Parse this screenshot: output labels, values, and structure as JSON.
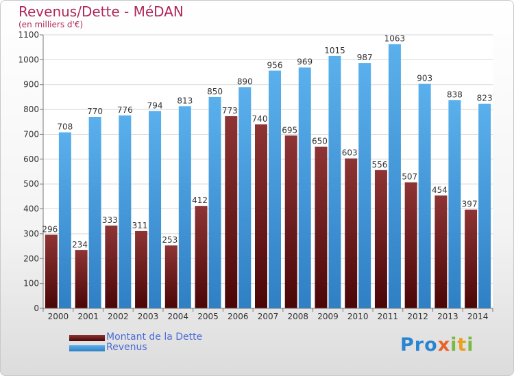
{
  "header": {
    "title": "Revenus/Dette - MéDAN",
    "subtitle": "(en milliers d'€)"
  },
  "legend": [
    {
      "label": "Montant de la Dette",
      "color": "#7a1c1c"
    },
    {
      "label": "Revenus",
      "color": "#4aa3e6"
    }
  ],
  "brand": {
    "text": "Proxiti",
    "letters": [
      {
        "ch": "P",
        "color": "#2a85d0"
      },
      {
        "ch": "r",
        "color": "#2a85d0"
      },
      {
        "ch": "o",
        "color": "#2a85d0"
      },
      {
        "ch": "x",
        "color": "#e8622a"
      },
      {
        "ch": "i",
        "color": "#7ab842"
      },
      {
        "ch": "t",
        "color": "#e8a020"
      },
      {
        "ch": "i",
        "color": "#7ab842"
      }
    ]
  },
  "chart_data": {
    "type": "bar",
    "categories": [
      "2000",
      "2001",
      "2002",
      "2003",
      "2004",
      "2005",
      "2006",
      "2007",
      "2008",
      "2009",
      "2010",
      "2011",
      "2012",
      "2013",
      "2014"
    ],
    "series": [
      {
        "name": "Montant de la Dette",
        "color": "#7a1c1c",
        "values": [
          296,
          234,
          333,
          311,
          253,
          412,
          773,
          740,
          695,
          650,
          603,
          556,
          507,
          454,
          397
        ]
      },
      {
        "name": "Revenus",
        "color": "#4aa3e6",
        "values": [
          708,
          770,
          776,
          794,
          813,
          850,
          890,
          956,
          969,
          1015,
          987,
          1063,
          903,
          838,
          823
        ]
      }
    ],
    "ylim": [
      0,
      1100
    ],
    "yticks": [
      0,
      100,
      200,
      300,
      400,
      500,
      600,
      700,
      800,
      900,
      1000,
      1100
    ],
    "grid": true,
    "legend_position": "bottom-left"
  }
}
